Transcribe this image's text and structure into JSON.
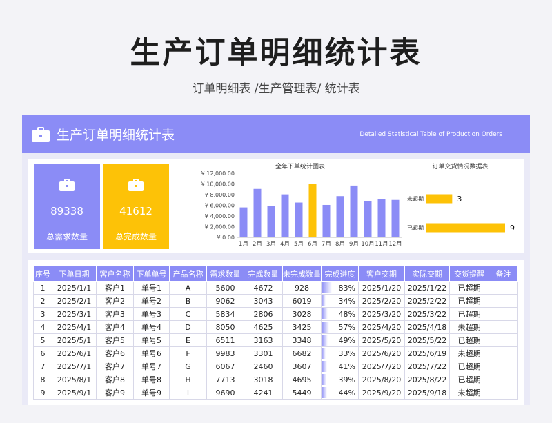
{
  "page": {
    "title": "生产订单明细统计表",
    "subtitle": "订单明细表 /生产管理表/ 统计表"
  },
  "header": {
    "title": "生产订单明细统计表",
    "en_title": "Detailed Statistical Table of Production Orders"
  },
  "kpis": [
    {
      "value": "89338",
      "label": "总需求数量"
    },
    {
      "value": "41612",
      "label": "总完成数量"
    }
  ],
  "colors": {
    "accent": "#8b8cf6",
    "highlight": "#fdc207"
  },
  "chart_data": [
    {
      "type": "bar",
      "title": "全年下单统计图表",
      "categories": [
        "1月",
        "2月",
        "3月",
        "4月",
        "5月",
        "6月",
        "7月",
        "8月",
        "9月",
        "10月",
        "11月",
        "12月"
      ],
      "values": [
        5600,
        9062,
        5834,
        8050,
        6511,
        9983,
        6067,
        7713,
        9690,
        6711,
        7100,
        7000
      ],
      "highlight_index": 5,
      "yticks": [
        "¥ 0.00",
        "¥ 2,000.00",
        "¥ 4,000.00",
        "¥ 6,000.00",
        "¥ 8,000.00",
        "¥ 10,000.00",
        "¥ 12,000.00"
      ],
      "ylim": [
        0,
        12000
      ]
    },
    {
      "type": "bar",
      "orientation": "horizontal",
      "title": "订单交货情况数据表",
      "categories": [
        "未超期",
        "已超期"
      ],
      "values": [
        3,
        9
      ],
      "xlim": [
        0,
        9
      ]
    }
  ],
  "table": {
    "headers": [
      "序号",
      "下单日期",
      "客户名称",
      "下单单号",
      "产品名称",
      "需求数量",
      "完成数量",
      "未完成数量",
      "完成进度",
      "客户交期",
      "实际交期",
      "交货提醒",
      "备注"
    ],
    "rows": [
      [
        "1",
        "2025/1/1",
        "客户1",
        "单号1",
        "A",
        "5600",
        "4672",
        "928",
        "83%",
        "2025/1/20",
        "2025/1/22",
        "已超期",
        ""
      ],
      [
        "2",
        "2025/2/1",
        "客户2",
        "单号2",
        "B",
        "9062",
        "3043",
        "6019",
        "34%",
        "2025/2/20",
        "2025/2/22",
        "已超期",
        ""
      ],
      [
        "3",
        "2025/3/1",
        "客户3",
        "单号3",
        "C",
        "5834",
        "2806",
        "3028",
        "48%",
        "2025/3/20",
        "2025/3/22",
        "已超期",
        ""
      ],
      [
        "4",
        "2025/4/1",
        "客户4",
        "单号4",
        "D",
        "8050",
        "4625",
        "3425",
        "57%",
        "2025/4/20",
        "2025/4/18",
        "未超期",
        ""
      ],
      [
        "5",
        "2025/5/1",
        "客户5",
        "单号5",
        "E",
        "6511",
        "3163",
        "3348",
        "49%",
        "2025/5/20",
        "2025/5/22",
        "已超期",
        ""
      ],
      [
        "6",
        "2025/6/1",
        "客户6",
        "单号6",
        "F",
        "9983",
        "3301",
        "6682",
        "33%",
        "2025/6/20",
        "2025/6/19",
        "未超期",
        ""
      ],
      [
        "7",
        "2025/7/1",
        "客户7",
        "单号7",
        "G",
        "6067",
        "2460",
        "3607",
        "41%",
        "2025/7/20",
        "2025/7/22",
        "已超期",
        ""
      ],
      [
        "8",
        "2025/8/1",
        "客户8",
        "单号8",
        "H",
        "7713",
        "3018",
        "4695",
        "39%",
        "2025/8/20",
        "2025/8/22",
        "已超期",
        ""
      ],
      [
        "9",
        "2025/9/1",
        "客户9",
        "单号9",
        "I",
        "9690",
        "4241",
        "5449",
        "44%",
        "2025/9/20",
        "2025/9/18",
        "未超期",
        ""
      ]
    ],
    "progress": [
      0.83,
      0.34,
      0.48,
      0.57,
      0.49,
      0.33,
      0.41,
      0.39,
      0.44
    ]
  }
}
